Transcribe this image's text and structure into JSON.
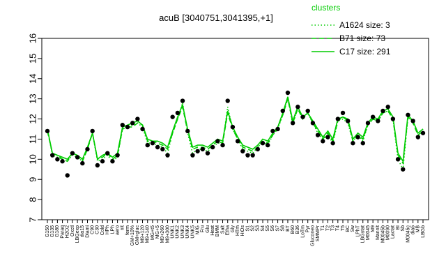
{
  "chart_data": {
    "type": "line",
    "title": "acuB [3040751,3041395,+1]",
    "xlabel": "",
    "ylabel": "",
    "ylim": [
      7,
      16
    ],
    "yticks": [
      7,
      8,
      9,
      10,
      11,
      12,
      13,
      14,
      15,
      16
    ],
    "grid": false,
    "legend_position": "top-right",
    "legend_title": "clusters",
    "accent_color": "#00cc00",
    "point_color": "#000000",
    "x_tick_labels": [
      "G150",
      "G135",
      "G180",
      "Paraq",
      "H2O2",
      "Oxctl",
      "LBGexp",
      "dia15",
      "Diami",
      "C90",
      "C30",
      "Cold",
      "HPh",
      "LPh",
      "aero",
      "nit",
      "ferm",
      "GM+10%",
      "GM+gluc",
      "M9+120",
      "M9+140",
      "MG+t5",
      "MG+5",
      "M9+260",
      "M9+300",
      "UNK1",
      "UNK2",
      "UNK3",
      "UNK4",
      "UNK5",
      "M/G",
      "Fru",
      "Glu",
      "Heat",
      "BMM",
      "Salt",
      "Etha",
      "Gly",
      "HTm",
      "HiOs",
      "S1",
      "S2",
      "S3",
      "S4",
      "S5",
      "S6",
      "S7",
      "S8",
      "BT",
      "B60",
      "B36",
      "LoTm",
      "Pyr",
      "Gluconeo",
      "SMMPr",
      "T1",
      "T2",
      "T3",
      "T4",
      "T5",
      "BC",
      "Sw",
      "LPhT",
      "LBGstat",
      "M0045",
      "M9",
      "Mannit",
      "M0045b",
      "M0090",
      "Lactat",
      "BI",
      "Sb",
      "M0045c",
      "dia5",
      "MB",
      "LBGb"
    ],
    "series": [
      {
        "name": "A1624 size: 3",
        "dash": "dotted",
        "values": [
          11.5,
          10.2,
          10.1,
          10.0,
          9.9,
          10.2,
          10.1,
          9.9,
          10.5,
          11.3,
          9.9,
          10.0,
          10.2,
          9.9,
          10.1,
          11.5,
          11.6,
          11.7,
          11.8,
          11.6,
          10.8,
          10.8,
          10.7,
          10.6,
          10.3,
          11.3,
          12.0,
          12.8,
          11.3,
          10.3,
          10.5,
          10.5,
          10.4,
          10.6,
          10.8,
          10.8,
          12.6,
          11.5,
          11.0,
          10.5,
          10.4,
          10.3,
          10.6,
          10.9,
          10.7,
          11.2,
          11.5,
          12.2,
          13.1,
          11.7,
          12.6,
          12.0,
          12.3,
          11.8,
          11.3,
          11.0,
          11.2,
          10.8,
          11.9,
          12.0,
          11.8,
          10.9,
          11.2,
          10.9,
          11.7,
          12.0,
          11.9,
          12.3,
          12.4,
          12.0,
          10.0,
          9.5,
          12.1,
          11.9,
          11.3,
          11.5
        ]
      },
      {
        "name": "B71 size: 73",
        "dash": "dashed",
        "values": [
          11.4,
          10.3,
          10.2,
          10.0,
          9.9,
          10.3,
          10.1,
          9.9,
          10.5,
          11.3,
          10.0,
          10.1,
          10.3,
          10.0,
          10.2,
          11.5,
          11.6,
          11.6,
          11.8,
          11.7,
          10.9,
          10.9,
          10.8,
          10.7,
          10.5,
          11.3,
          12.0,
          12.6,
          11.4,
          10.5,
          10.6,
          10.6,
          10.5,
          10.7,
          10.9,
          10.8,
          12.3,
          11.5,
          11.0,
          10.6,
          10.5,
          10.4,
          10.6,
          10.9,
          10.8,
          11.2,
          11.6,
          12.2,
          13.0,
          11.8,
          12.5,
          12.0,
          12.3,
          11.8,
          11.4,
          11.0,
          11.3,
          10.9,
          11.9,
          12.1,
          11.9,
          10.9,
          11.2,
          11.0,
          11.7,
          12.0,
          11.9,
          12.3,
          12.4,
          12.0,
          10.2,
          9.8,
          12.1,
          11.8,
          11.2,
          11.4
        ]
      },
      {
        "name": "C17 size: 291",
        "dash": "solid",
        "values": [
          11.5,
          10.3,
          10.2,
          10.1,
          10.0,
          10.3,
          10.2,
          10.0,
          10.6,
          11.3,
          10.0,
          10.2,
          10.3,
          10.1,
          10.3,
          11.6,
          11.7,
          11.8,
          11.9,
          11.7,
          11.0,
          10.9,
          10.9,
          10.8,
          10.6,
          11.4,
          12.1,
          12.7,
          11.5,
          10.6,
          10.7,
          10.7,
          10.6,
          10.8,
          11.0,
          10.9,
          12.4,
          11.6,
          11.1,
          10.7,
          10.6,
          10.5,
          10.7,
          11.0,
          10.9,
          11.3,
          11.6,
          12.3,
          13.1,
          11.9,
          12.6,
          12.1,
          12.3,
          11.9,
          11.5,
          11.1,
          11.4,
          11.0,
          12.0,
          12.1,
          12.0,
          11.0,
          11.3,
          11.1,
          11.8,
          12.1,
          12.0,
          12.4,
          12.5,
          12.1,
          10.3,
          9.9,
          12.2,
          11.9,
          11.3,
          11.5
        ]
      }
    ],
    "points": [
      11.4,
      10.2,
      10.0,
      9.9,
      9.2,
      10.3,
      10.1,
      9.8,
      10.5,
      11.4,
      9.7,
      9.9,
      10.3,
      9.9,
      10.2,
      11.7,
      11.6,
      11.8,
      12.0,
      11.5,
      10.7,
      10.8,
      10.6,
      10.5,
      10.2,
      12.1,
      12.3,
      12.9,
      11.4,
      10.2,
      10.4,
      10.5,
      10.3,
      10.6,
      10.9,
      10.7,
      12.9,
      11.6,
      10.9,
      10.4,
      10.2,
      10.2,
      10.5,
      10.8,
      10.7,
      11.4,
      11.5,
      12.4,
      13.3,
      11.8,
      12.6,
      12.1,
      12.4,
      11.8,
      11.2,
      10.9,
      11.1,
      10.8,
      12.0,
      12.3,
      11.9,
      10.8,
      11.1,
      10.8,
      11.8,
      12.1,
      11.9,
      12.4,
      12.6,
      12.0,
      10.0,
      9.5,
      12.2,
      11.9,
      11.1,
      11.3
    ]
  }
}
